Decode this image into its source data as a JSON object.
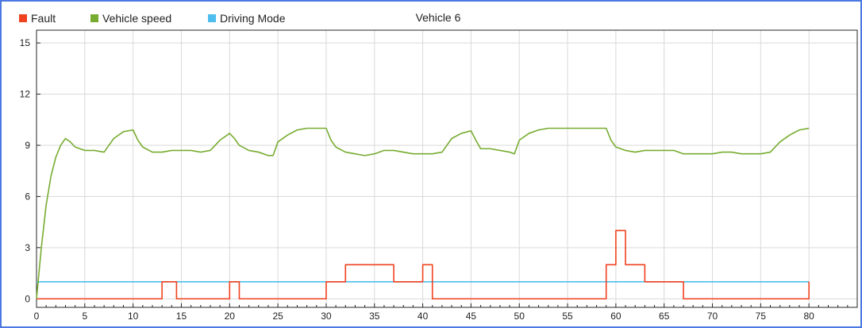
{
  "chart_data": {
    "type": "line",
    "title": "Vehicle 6",
    "xlim": [
      0,
      85
    ],
    "ylim": [
      -0.5,
      15.75
    ],
    "x_ticks": [
      0,
      5,
      10,
      15,
      20,
      25,
      30,
      35,
      40,
      45,
      50,
      55,
      60,
      65,
      70,
      75,
      80
    ],
    "y_ticks": [
      0,
      3,
      6,
      9,
      12,
      15
    ],
    "grid": true,
    "legend_position": "top-left",
    "series": [
      {
        "name": "Fault",
        "color": "#f0421f",
        "step": true,
        "points": [
          [
            0,
            0
          ],
          [
            13,
            0
          ],
          [
            13,
            1
          ],
          [
            14.5,
            1
          ],
          [
            14.5,
            0
          ],
          [
            20,
            0
          ],
          [
            20,
            1
          ],
          [
            21,
            1
          ],
          [
            21,
            0
          ],
          [
            30,
            0
          ],
          [
            30,
            1
          ],
          [
            32,
            1
          ],
          [
            32,
            2
          ],
          [
            37,
            2
          ],
          [
            37,
            1
          ],
          [
            40,
            1
          ],
          [
            40,
            2
          ],
          [
            41,
            2
          ],
          [
            41,
            0
          ],
          [
            59,
            0
          ],
          [
            59,
            2
          ],
          [
            60,
            2
          ],
          [
            60,
            4
          ],
          [
            61,
            4
          ],
          [
            61,
            2
          ],
          [
            63,
            2
          ],
          [
            63,
            1
          ],
          [
            67,
            1
          ],
          [
            67,
            0
          ],
          [
            80,
            0
          ],
          [
            80,
            1
          ]
        ]
      },
      {
        "name": "Vehicle speed",
        "color": "#77ac30",
        "step": false,
        "points": [
          [
            0,
            0
          ],
          [
            0.5,
            3
          ],
          [
            1,
            5.5
          ],
          [
            1.5,
            7.2
          ],
          [
            2,
            8.3
          ],
          [
            2.5,
            9
          ],
          [
            3,
            9.4
          ],
          [
            3.5,
            9.2
          ],
          [
            4,
            8.9
          ],
          [
            5,
            8.7
          ],
          [
            6,
            8.7
          ],
          [
            7,
            8.6
          ],
          [
            7.5,
            9
          ],
          [
            8,
            9.4
          ],
          [
            9,
            9.8
          ],
          [
            10,
            9.9
          ],
          [
            10.5,
            9.3
          ],
          [
            11,
            8.9
          ],
          [
            12,
            8.6
          ],
          [
            13,
            8.6
          ],
          [
            14,
            8.7
          ],
          [
            15,
            8.7
          ],
          [
            16,
            8.7
          ],
          [
            17,
            8.6
          ],
          [
            18,
            8.7
          ],
          [
            19,
            9.3
          ],
          [
            20,
            9.7
          ],
          [
            20.5,
            9.4
          ],
          [
            21,
            9
          ],
          [
            22,
            8.7
          ],
          [
            23,
            8.6
          ],
          [
            24,
            8.4
          ],
          [
            24.5,
            8.4
          ],
          [
            25,
            9.2
          ],
          [
            26,
            9.6
          ],
          [
            27,
            9.9
          ],
          [
            28,
            10
          ],
          [
            30,
            10
          ],
          [
            30.5,
            9.3
          ],
          [
            31,
            8.9
          ],
          [
            32,
            8.6
          ],
          [
            33,
            8.5
          ],
          [
            34,
            8.4
          ],
          [
            35,
            8.5
          ],
          [
            36,
            8.7
          ],
          [
            37,
            8.7
          ],
          [
            38,
            8.6
          ],
          [
            39,
            8.5
          ],
          [
            40,
            8.5
          ],
          [
            41,
            8.5
          ],
          [
            42,
            8.6
          ],
          [
            43,
            9.4
          ],
          [
            44,
            9.7
          ],
          [
            45,
            9.85
          ],
          [
            45.5,
            9.3
          ],
          [
            46,
            8.8
          ],
          [
            47,
            8.8
          ],
          [
            48,
            8.7
          ],
          [
            49,
            8.6
          ],
          [
            49.5,
            8.5
          ],
          [
            50,
            9.3
          ],
          [
            51,
            9.7
          ],
          [
            52,
            9.9
          ],
          [
            53,
            10
          ],
          [
            59,
            10
          ],
          [
            59.5,
            9.3
          ],
          [
            60,
            8.9
          ],
          [
            61,
            8.7
          ],
          [
            62,
            8.6
          ],
          [
            63,
            8.7
          ],
          [
            64,
            8.7
          ],
          [
            65,
            8.7
          ],
          [
            66,
            8.7
          ],
          [
            67,
            8.5
          ],
          [
            68,
            8.5
          ],
          [
            69,
            8.5
          ],
          [
            70,
            8.5
          ],
          [
            71,
            8.6
          ],
          [
            72,
            8.6
          ],
          [
            73,
            8.5
          ],
          [
            74,
            8.5
          ],
          [
            75,
            8.5
          ],
          [
            76,
            8.6
          ],
          [
            77,
            9.2
          ],
          [
            78,
            9.6
          ],
          [
            79,
            9.9
          ],
          [
            80,
            10
          ]
        ]
      },
      {
        "name": "Driving Mode",
        "color": "#4dbeee",
        "step": true,
        "points": [
          [
            0,
            1
          ],
          [
            80,
            1
          ]
        ]
      }
    ]
  }
}
